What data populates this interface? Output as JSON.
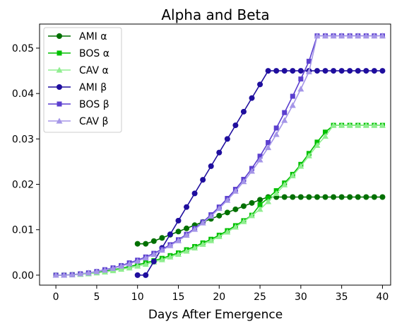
{
  "chart_data": {
    "type": "line",
    "title": "Alpha and Beta",
    "xlabel": "Days After Emergence",
    "ylabel": "",
    "xlim": [
      -2,
      41
    ],
    "ylim": [
      -0.0022,
      0.0553
    ],
    "xticks": [
      0,
      5,
      10,
      15,
      20,
      25,
      30,
      35,
      40
    ],
    "yticks": [
      0.0,
      0.01,
      0.02,
      0.03,
      0.04,
      0.05
    ],
    "ytick_labels": [
      "0.00",
      "0.01",
      "0.02",
      "0.03",
      "0.04",
      "0.05"
    ],
    "grid": false,
    "legend_position": "top-left",
    "series": [
      {
        "name": "AMI α",
        "color": "#007000",
        "marker": "circle",
        "x": [
          10,
          11,
          12,
          13,
          14,
          15,
          16,
          17,
          18,
          19,
          20,
          21,
          22,
          23,
          24,
          25,
          26,
          27,
          28,
          29,
          30,
          31,
          32,
          33,
          34,
          35,
          36,
          37,
          38,
          39,
          40
        ],
        "y": [
          0.0069,
          0.0069,
          0.0075,
          0.0082,
          0.0089,
          0.0096,
          0.0103,
          0.011,
          0.0117,
          0.0124,
          0.0131,
          0.0138,
          0.0145,
          0.0152,
          0.0159,
          0.0166,
          0.0172,
          0.0172,
          0.0172,
          0.0172,
          0.0172,
          0.0172,
          0.0172,
          0.0172,
          0.0172,
          0.0172,
          0.0172,
          0.0172,
          0.0172,
          0.0172,
          0.0172
        ]
      },
      {
        "name": "BOS α",
        "color": "#00c000",
        "marker": "square",
        "x": [
          0,
          1,
          2,
          3,
          4,
          5,
          6,
          7,
          8,
          9,
          10,
          11,
          12,
          13,
          14,
          15,
          16,
          17,
          18,
          19,
          20,
          21,
          22,
          23,
          24,
          25,
          26,
          27,
          28,
          29,
          30,
          31,
          32,
          33,
          34,
          35,
          36,
          37,
          38,
          39,
          40
        ],
        "y": [
          0,
          0,
          0.0001,
          0.0002,
          0.0004,
          0.0006,
          0.0009,
          0.0012,
          0.0015,
          0.0019,
          0.0023,
          0.0027,
          0.0032,
          0.0037,
          0.0043,
          0.0049,
          0.0056,
          0.0063,
          0.0071,
          0.0079,
          0.0088,
          0.0098,
          0.0109,
          0.012,
          0.0132,
          0.0155,
          0.017,
          0.0186,
          0.0203,
          0.0222,
          0.0244,
          0.0268,
          0.0293,
          0.0315,
          0.033,
          0.033,
          0.033,
          0.033,
          0.033,
          0.033,
          0.033
        ]
      },
      {
        "name": "CAV α",
        "color": "#90ee90",
        "marker": "triangle",
        "x": [
          0,
          1,
          2,
          3,
          4,
          5,
          6,
          7,
          8,
          9,
          10,
          11,
          12,
          13,
          14,
          15,
          16,
          17,
          18,
          19,
          20,
          21,
          22,
          23,
          24,
          25,
          26,
          27,
          28,
          29,
          30,
          31,
          32,
          33,
          34,
          35,
          36,
          37,
          38,
          39,
          40
        ],
        "y": [
          0,
          0,
          0.0001,
          0.0002,
          0.0003,
          0.0005,
          0.0007,
          0.001,
          0.0013,
          0.0016,
          0.002,
          0.0024,
          0.0029,
          0.0034,
          0.004,
          0.0046,
          0.0053,
          0.006,
          0.0068,
          0.0076,
          0.0085,
          0.0095,
          0.0106,
          0.0118,
          0.0131,
          0.0145,
          0.0162,
          0.018,
          0.0199,
          0.0219,
          0.024,
          0.0263,
          0.0286,
          0.0306,
          0.033,
          0.033,
          0.033,
          0.033,
          0.033,
          0.033,
          0.033
        ]
      },
      {
        "name": "AMI β",
        "color": "#1f0e9e",
        "marker": "circle",
        "x": [
          10,
          11,
          12,
          13,
          14,
          15,
          16,
          17,
          18,
          19,
          20,
          21,
          22,
          23,
          24,
          25,
          26,
          27,
          28,
          29,
          30,
          31,
          32,
          33,
          34,
          35,
          36,
          37,
          38,
          39,
          40
        ],
        "y": [
          0,
          0,
          0.003,
          0.006,
          0.009,
          0.012,
          0.015,
          0.018,
          0.021,
          0.024,
          0.027,
          0.03,
          0.033,
          0.036,
          0.039,
          0.042,
          0.045,
          0.045,
          0.045,
          0.045,
          0.045,
          0.045,
          0.045,
          0.045,
          0.045,
          0.045,
          0.045,
          0.045,
          0.045,
          0.045,
          0.045
        ]
      },
      {
        "name": "BOS β",
        "color": "#5b3fcf",
        "marker": "square",
        "x": [
          0,
          1,
          2,
          3,
          4,
          5,
          6,
          7,
          8,
          9,
          10,
          11,
          12,
          13,
          14,
          15,
          16,
          17,
          18,
          19,
          20,
          21,
          22,
          23,
          24,
          25,
          26,
          27,
          28,
          29,
          30,
          31,
          32,
          33,
          34,
          35,
          36,
          37,
          38,
          39,
          40
        ],
        "y": [
          0,
          0,
          0.0001,
          0.0003,
          0.0005,
          0.0008,
          0.0012,
          0.0016,
          0.0021,
          0.0027,
          0.0033,
          0.004,
          0.0048,
          0.0057,
          0.0067,
          0.0078,
          0.009,
          0.0103,
          0.0117,
          0.0133,
          0.015,
          0.0169,
          0.0189,
          0.0211,
          0.0235,
          0.0262,
          0.0292,
          0.0324,
          0.0358,
          0.0394,
          0.0432,
          0.0471,
          0.0527,
          0.0527,
          0.0527,
          0.0527,
          0.0527,
          0.0527,
          0.0527,
          0.0527,
          0.0527
        ]
      },
      {
        "name": "CAV β",
        "color": "#a596e8",
        "marker": "triangle",
        "x": [
          0,
          1,
          2,
          3,
          4,
          5,
          6,
          7,
          8,
          9,
          10,
          11,
          12,
          13,
          14,
          15,
          16,
          17,
          18,
          19,
          20,
          21,
          22,
          23,
          24,
          25,
          26,
          27,
          28,
          29,
          30,
          31,
          32,
          33,
          34,
          35,
          36,
          37,
          38,
          39,
          40
        ],
        "y": [
          0,
          0,
          0.0001,
          0.0003,
          0.0005,
          0.0008,
          0.0011,
          0.0015,
          0.002,
          0.0025,
          0.0031,
          0.0038,
          0.0046,
          0.0055,
          0.0065,
          0.0076,
          0.0088,
          0.0101,
          0.0115,
          0.013,
          0.0147,
          0.0165,
          0.0185,
          0.0206,
          0.0229,
          0.0254,
          0.0281,
          0.031,
          0.0341,
          0.0374,
          0.041,
          0.0448,
          0.0527,
          0.0527,
          0.0527,
          0.0527,
          0.0527,
          0.0527,
          0.0527,
          0.0527,
          0.0527
        ]
      }
    ]
  }
}
